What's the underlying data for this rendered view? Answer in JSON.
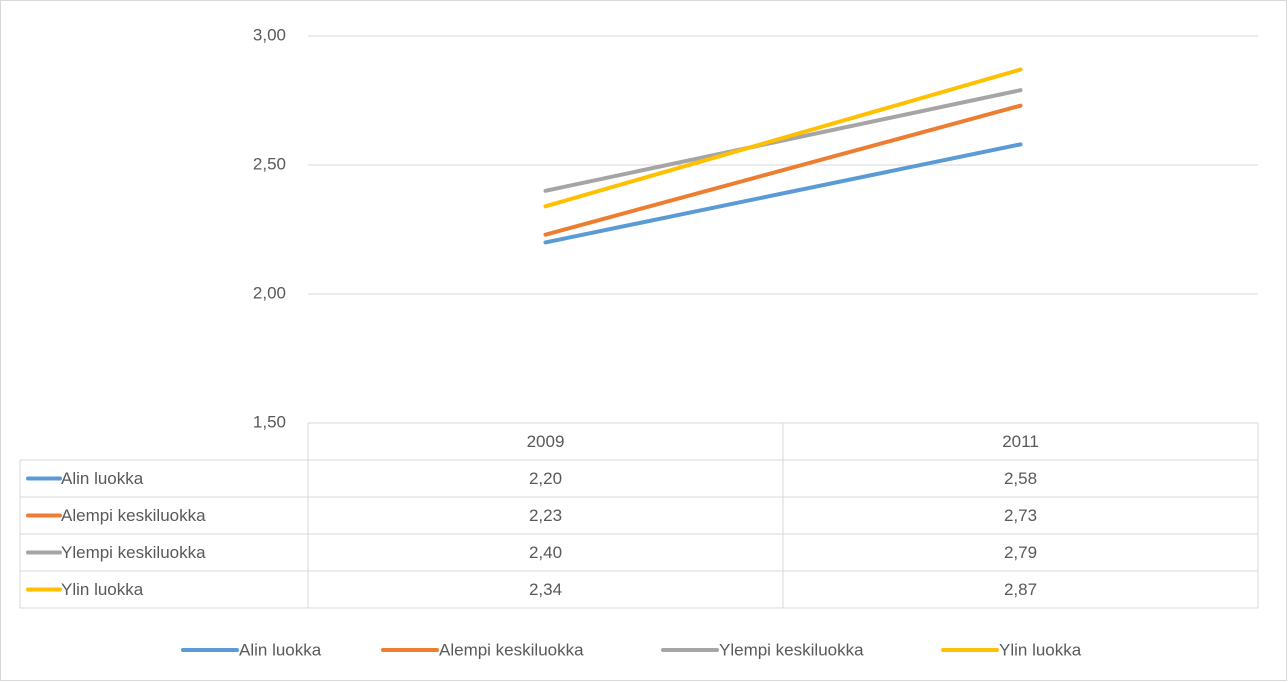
{
  "chart_data": {
    "type": "line",
    "categories": [
      "2009",
      "2011"
    ],
    "series": [
      {
        "name": "Alin luokka",
        "color": "#5b9bd5",
        "values": [
          2.2,
          2.58
        ],
        "value_labels": [
          "2,20",
          "2,58"
        ]
      },
      {
        "name": "Alempi keskiluokka",
        "color": "#ed7d31",
        "values": [
          2.23,
          2.73
        ],
        "value_labels": [
          "2,23",
          "2,73"
        ]
      },
      {
        "name": "Ylempi keskiluokka",
        "color": "#a5a5a5",
        "values": [
          2.4,
          2.79
        ],
        "value_labels": [
          "2,40",
          "2,79"
        ]
      },
      {
        "name": "Ylin luokka",
        "color": "#ffc000",
        "values": [
          2.34,
          2.87
        ],
        "value_labels": [
          "2,34",
          "2,87"
        ]
      }
    ],
    "ylim": [
      1.5,
      3.0
    ],
    "yticks": [
      {
        "value": 1.5,
        "label": "1,50"
      },
      {
        "value": 2.0,
        "label": "2,00"
      },
      {
        "value": 2.5,
        "label": "2,50"
      },
      {
        "value": 3.0,
        "label": "3,00"
      }
    ],
    "grid": true,
    "legend": "bottom"
  }
}
